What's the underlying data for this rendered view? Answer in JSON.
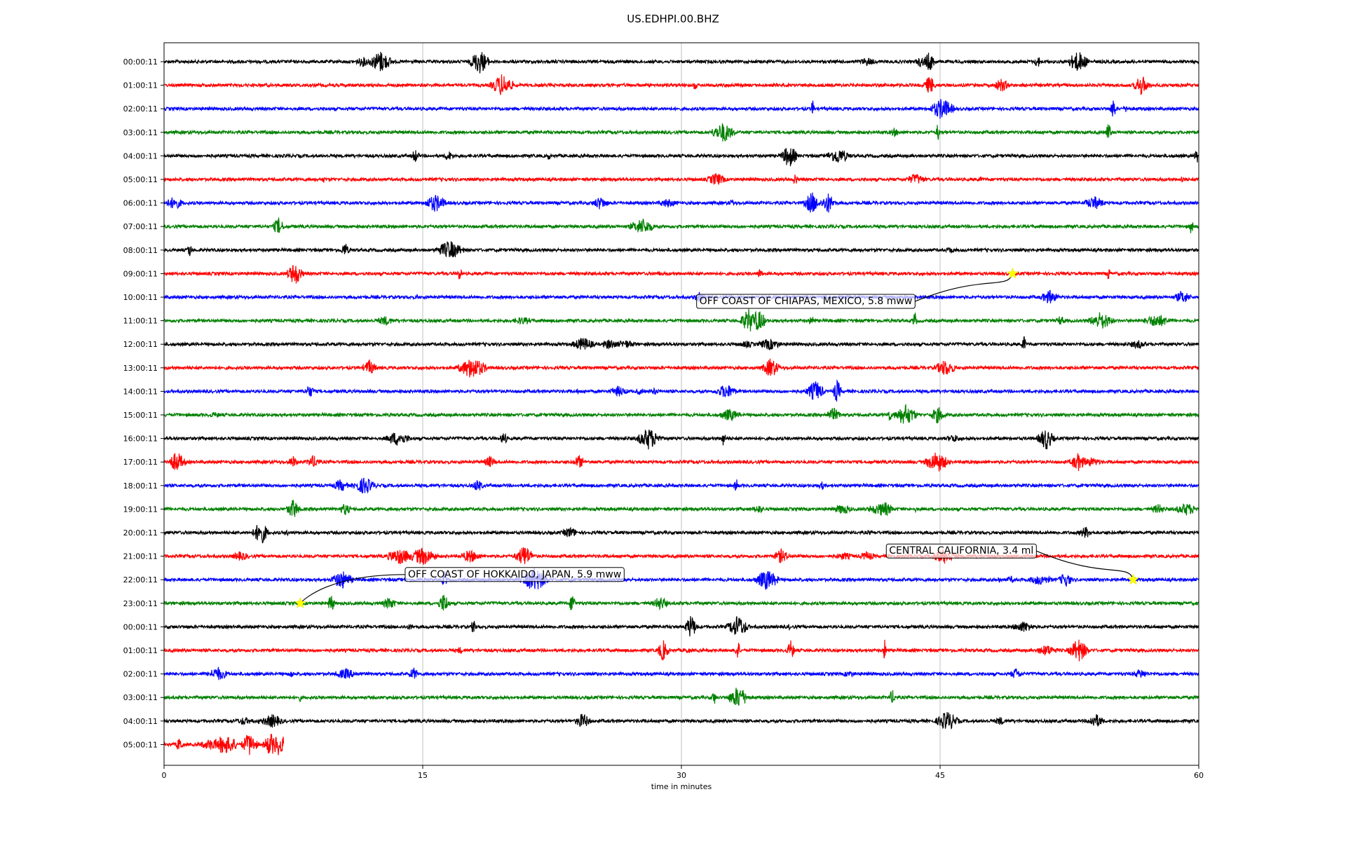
{
  "chart_data": {
    "type": "line",
    "title": "US.EDHPI.00.BHZ",
    "xlabel": "time in minutes",
    "ylabel": "",
    "xlim": [
      0,
      60
    ],
    "x_ticks": [
      "0",
      "15",
      "30",
      "45",
      "60"
    ],
    "x_tick_values": [
      0,
      15,
      30,
      45,
      60
    ],
    "grid": "vertical",
    "colors": [
      "#000000",
      "#ff0000",
      "#0000ff",
      "#008000"
    ],
    "rows": [
      {
        "label": "00:00:11",
        "color": "#000000",
        "duration": 60
      },
      {
        "label": "01:00:11",
        "color": "#ff0000",
        "duration": 60
      },
      {
        "label": "02:00:11",
        "color": "#0000ff",
        "duration": 60
      },
      {
        "label": "03:00:11",
        "color": "#008000",
        "duration": 60
      },
      {
        "label": "04:00:11",
        "color": "#000000",
        "duration": 60
      },
      {
        "label": "05:00:11",
        "color": "#ff0000",
        "duration": 60
      },
      {
        "label": "06:00:11",
        "color": "#0000ff",
        "duration": 60
      },
      {
        "label": "07:00:11",
        "color": "#008000",
        "duration": 60
      },
      {
        "label": "08:00:11",
        "color": "#000000",
        "duration": 60
      },
      {
        "label": "09:00:11",
        "color": "#ff0000",
        "duration": 60
      },
      {
        "label": "10:00:11",
        "color": "#0000ff",
        "duration": 60
      },
      {
        "label": "11:00:11",
        "color": "#008000",
        "duration": 60
      },
      {
        "label": "12:00:11",
        "color": "#000000",
        "duration": 60
      },
      {
        "label": "13:00:11",
        "color": "#ff0000",
        "duration": 60
      },
      {
        "label": "14:00:11",
        "color": "#0000ff",
        "duration": 60
      },
      {
        "label": "15:00:11",
        "color": "#008000",
        "duration": 60
      },
      {
        "label": "16:00:11",
        "color": "#000000",
        "duration": 60
      },
      {
        "label": "17:00:11",
        "color": "#ff0000",
        "duration": 60
      },
      {
        "label": "18:00:11",
        "color": "#0000ff",
        "duration": 60
      },
      {
        "label": "19:00:11",
        "color": "#008000",
        "duration": 60
      },
      {
        "label": "20:00:11",
        "color": "#000000",
        "duration": 60
      },
      {
        "label": "21:00:11",
        "color": "#ff0000",
        "duration": 60
      },
      {
        "label": "22:00:11",
        "color": "#0000ff",
        "duration": 60
      },
      {
        "label": "23:00:11",
        "color": "#008000",
        "duration": 60
      },
      {
        "label": "00:00:11",
        "color": "#000000",
        "duration": 60
      },
      {
        "label": "01:00:11",
        "color": "#ff0000",
        "duration": 60
      },
      {
        "label": "02:00:11",
        "color": "#0000ff",
        "duration": 60
      },
      {
        "label": "03:00:11",
        "color": "#008000",
        "duration": 60
      },
      {
        "label": "04:00:11",
        "color": "#000000",
        "duration": 60
      },
      {
        "label": "05:00:11",
        "color": "#ff0000",
        "duration": 6.9
      }
    ],
    "events": [
      {
        "row": 9,
        "minute": 49.2,
        "text": "OFF COAST OF CHIAPAS, MEXICO, 5.8 mww",
        "label_minute": 30.8,
        "label_row": 10.15
      },
      {
        "row": 22,
        "minute": 56.2,
        "text": "CENTRAL CALIFORNIA, 3.4 ml",
        "label_minute": 41.8,
        "label_row": 20.75
      },
      {
        "row": 23,
        "minute": 7.9,
        "text": "OFF COAST OF HOKKAIDO, JAPAN, 5.9 mww",
        "label_minute": 13.9,
        "label_row": 21.75
      }
    ],
    "star_color": "#ffff00"
  }
}
